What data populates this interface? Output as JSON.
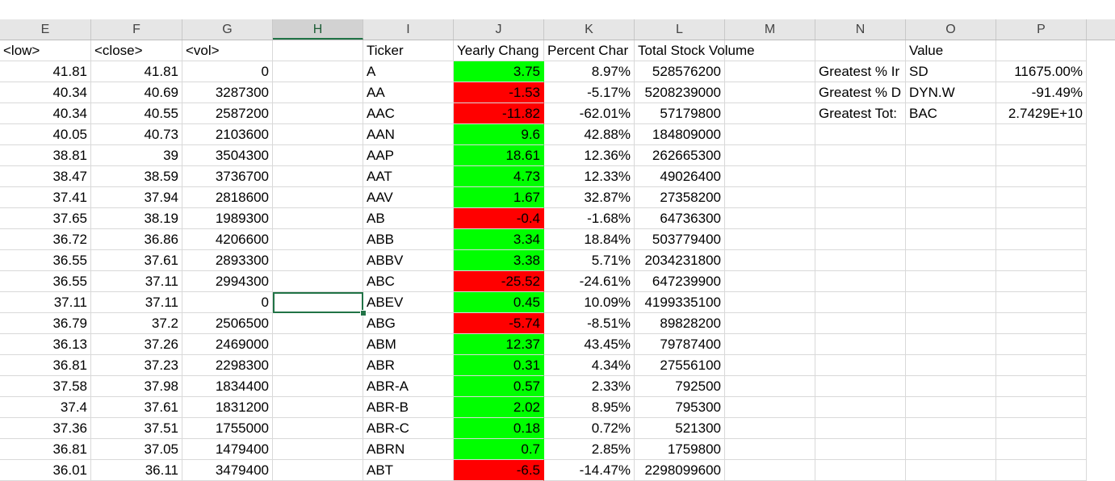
{
  "columns": [
    "E",
    "F",
    "G",
    "H",
    "I",
    "J",
    "K",
    "L",
    "M",
    "N",
    "O",
    "P"
  ],
  "selected_column": "H",
  "header_row": {
    "E": "<low>",
    "F": "<close>",
    "G": "<vol>",
    "H": "",
    "I": "Ticker",
    "J": "Yearly Chang",
    "K": "Percent Char",
    "L": "Total Stock Volume",
    "M": "",
    "N": "",
    "O": "Value",
    "P": ""
  },
  "rows": [
    {
      "E": "41.81",
      "F": "41.81",
      "G": "0",
      "I": "A",
      "J": "3.75",
      "Jc": "green",
      "K": "8.97%",
      "L": "528576200"
    },
    {
      "E": "40.34",
      "F": "40.69",
      "G": "3287300",
      "I": "AA",
      "J": "-1.53",
      "Jc": "red",
      "K": "-5.17%",
      "L": "5208239000"
    },
    {
      "E": "40.34",
      "F": "40.55",
      "G": "2587200",
      "I": "AAC",
      "J": "-11.82",
      "Jc": "red",
      "K": "-62.01%",
      "L": "57179800"
    },
    {
      "E": "40.05",
      "F": "40.73",
      "G": "2103600",
      "I": "AAN",
      "J": "9.6",
      "Jc": "green",
      "K": "42.88%",
      "L": "184809000"
    },
    {
      "E": "38.81",
      "F": "39",
      "G": "3504300",
      "I": "AAP",
      "J": "18.61",
      "Jc": "green",
      "K": "12.36%",
      "L": "262665300"
    },
    {
      "E": "38.47",
      "F": "38.59",
      "G": "3736700",
      "I": "AAT",
      "J": "4.73",
      "Jc": "green",
      "K": "12.33%",
      "L": "49026400"
    },
    {
      "E": "37.41",
      "F": "37.94",
      "G": "2818600",
      "I": "AAV",
      "J": "1.67",
      "Jc": "green",
      "K": "32.87%",
      "L": "27358200"
    },
    {
      "E": "37.65",
      "F": "38.19",
      "G": "1989300",
      "I": "AB",
      "J": "-0.4",
      "Jc": "red",
      "K": "-1.68%",
      "L": "64736300"
    },
    {
      "E": "36.72",
      "F": "36.86",
      "G": "4206600",
      "I": "ABB",
      "J": "3.34",
      "Jc": "green",
      "K": "18.84%",
      "L": "503779400"
    },
    {
      "E": "36.55",
      "F": "37.61",
      "G": "2893300",
      "I": "ABBV",
      "J": "3.38",
      "Jc": "green",
      "K": "5.71%",
      "L": "2034231800"
    },
    {
      "E": "36.55",
      "F": "37.11",
      "G": "2994300",
      "I": "ABC",
      "J": "-25.52",
      "Jc": "red",
      "K": "-24.61%",
      "L": "647239900"
    },
    {
      "E": "37.11",
      "F": "37.11",
      "G": "0",
      "I": "ABEV",
      "J": "0.45",
      "Jc": "green",
      "K": "10.09%",
      "L": "4199335100"
    },
    {
      "E": "36.79",
      "F": "37.2",
      "G": "2506500",
      "I": "ABG",
      "J": "-5.74",
      "Jc": "red",
      "K": "-8.51%",
      "L": "89828200"
    },
    {
      "E": "36.13",
      "F": "37.26",
      "G": "2469000",
      "I": "ABM",
      "J": "12.37",
      "Jc": "green",
      "K": "43.45%",
      "L": "79787400"
    },
    {
      "E": "36.81",
      "F": "37.23",
      "G": "2298300",
      "I": "ABR",
      "J": "0.31",
      "Jc": "green",
      "K": "4.34%",
      "L": "27556100"
    },
    {
      "E": "37.58",
      "F": "37.98",
      "G": "1834400",
      "I": "ABR-A",
      "J": "0.57",
      "Jc": "green",
      "K": "2.33%",
      "L": "792500"
    },
    {
      "E": "37.4",
      "F": "37.61",
      "G": "1831200",
      "I": "ABR-B",
      "J": "2.02",
      "Jc": "green",
      "K": "8.95%",
      "L": "795300"
    },
    {
      "E": "37.36",
      "F": "37.51",
      "G": "1755000",
      "I": "ABR-C",
      "J": "0.18",
      "Jc": "green",
      "K": "0.72%",
      "L": "521300"
    },
    {
      "E": "36.81",
      "F": "37.05",
      "G": "1479400",
      "I": "ABRN",
      "J": "0.7",
      "Jc": "green",
      "K": "2.85%",
      "L": "1759800"
    },
    {
      "E": "36.01",
      "F": "36.11",
      "G": "3479400",
      "I": "ABT",
      "J": "-6.5",
      "Jc": "red",
      "K": "-14.47%",
      "L": "2298099600"
    }
  ],
  "summary": [
    {
      "N": "Greatest % Ir",
      "O": "SD",
      "P": "11675.00%"
    },
    {
      "N": "Greatest % D",
      "O": "DYN.W",
      "P": "-91.49%"
    },
    {
      "N": "Greatest Tot:",
      "O": "BAC",
      "P": "2.7429E+10"
    }
  ],
  "colors": {
    "positive": "#00ff00",
    "negative": "#ff0000",
    "selection": "#217346"
  }
}
